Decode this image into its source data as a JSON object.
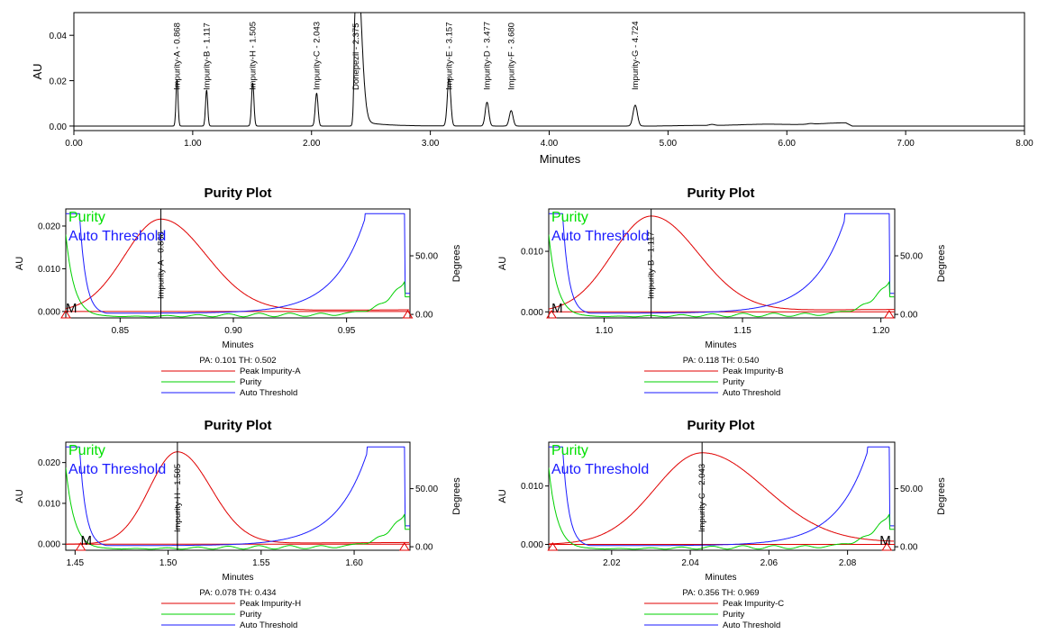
{
  "main_chart": {
    "ylabel": "AU",
    "xlabel": "Minutes",
    "chart_data": {
      "type": "line",
      "xlim": [
        0,
        8
      ],
      "ylim": [
        -0.002,
        0.05
      ],
      "x_ticks": [
        0,
        1,
        2,
        3,
        4,
        5,
        6,
        7,
        8
      ],
      "x_tick_labels": [
        "0.00",
        "1.00",
        "2.00",
        "3.00",
        "4.00",
        "5.00",
        "6.00",
        "7.00",
        "8.00"
      ],
      "y_ticks": [
        0,
        0.02,
        0.04
      ],
      "y_tick_labels": [
        "0.00",
        "0.02",
        "0.04"
      ],
      "peaks": [
        {
          "label": "Impurity-A - 0.868",
          "rt": 0.868,
          "height": 0.0205
        },
        {
          "label": "Impurity-B - 1.117",
          "rt": 1.117,
          "height": 0.0158
        },
        {
          "label": "Impurity-H - 1.505",
          "rt": 1.505,
          "height": 0.019
        },
        {
          "label": "Impurity-C - 2.043",
          "rt": 2.043,
          "height": 0.0145
        },
        {
          "label": "Donepezil - 2.375",
          "rt": 2.375,
          "height": 0.05
        },
        {
          "label": "Impurity-E - 3.157",
          "rt": 3.157,
          "height": 0.021
        },
        {
          "label": "Impurity-D - 3.477",
          "rt": 3.477,
          "height": 0.0105
        },
        {
          "label": "Impurity-F - 3.680",
          "rt": 3.68,
          "height": 0.0068
        },
        {
          "label": "Impurity-G - 4.724",
          "rt": 4.724,
          "height": 0.0092
        }
      ]
    }
  },
  "purity_plots": [
    {
      "title": "Purity Plot",
      "legend_top": [
        "Purity",
        "Auto Threshold"
      ],
      "ylabel_left": "AU",
      "ylabel_right": "Degrees",
      "xlabel": "Minutes",
      "marker_label": "M",
      "peak_label": "Impurity-A - 0.868",
      "pa_th": "PA: 0.101  TH: 0.502",
      "legend_bottom": [
        "Peak Impurity-A",
        "Purity",
        "Auto Threshold"
      ],
      "chart_data": {
        "type": "line",
        "xlim": [
          0.826,
          0.978
        ],
        "x_ticks": [
          0.85,
          0.9,
          0.95
        ],
        "x_tick_labels": [
          "0.85",
          "0.90",
          "0.95"
        ],
        "ylim_left": [
          -0.0015,
          0.024
        ],
        "y_ticks_left": [
          0,
          0.01,
          0.02
        ],
        "y_tick_labels_left": [
          "0.000",
          "0.010",
          "0.020"
        ],
        "ylim_right": [
          -3,
          90
        ],
        "y_ticks_right": [
          0,
          50
        ],
        "y_tick_labels_right": [
          "0.00",
          "50.00"
        ],
        "peak_apex": 0.868,
        "peak_height": 0.0215,
        "peak_sigma_left": 0.016,
        "peak_sigma_right": 0.02,
        "threshold_plateau_start": 0.958,
        "markers": [
          0.826,
          0.977
        ]
      }
    },
    {
      "title": "Purity Plot",
      "legend_top": [
        "Purity",
        "Auto Threshold"
      ],
      "ylabel_left": "AU",
      "ylabel_right": "Degrees",
      "xlabel": "Minutes",
      "marker_label": "M",
      "peak_label": "Impurity-B - 1.117",
      "pa_th": "PA: 0.118  TH: 0.540",
      "legend_bottom": [
        "Peak Impurity-B",
        "Purity",
        "Auto Threshold"
      ],
      "chart_data": {
        "type": "line",
        "xlim": [
          1.08,
          1.205
        ],
        "x_ticks": [
          1.1,
          1.15,
          1.2
        ],
        "x_tick_labels": [
          "1.10",
          "1.15",
          "1.20"
        ],
        "ylim_left": [
          -0.001,
          0.017
        ],
        "y_ticks_left": [
          0,
          0.01
        ],
        "y_tick_labels_left": [
          "0.000",
          "0.010"
        ],
        "ylim_right": [
          -3,
          90
        ],
        "y_ticks_right": [
          0,
          50
        ],
        "y_tick_labels_right": [
          "0.00",
          "50.00"
        ],
        "peak_apex": 1.117,
        "peak_height": 0.0157,
        "peak_sigma_left": 0.014,
        "peak_sigma_right": 0.017,
        "threshold_plateau_start": 1.187,
        "markers": [
          1.081,
          1.203
        ]
      }
    },
    {
      "title": "Purity Plot",
      "legend_top": [
        "Purity",
        "Auto Threshold"
      ],
      "ylabel_left": "AU",
      "ylabel_right": "Degrees",
      "xlabel": "Minutes",
      "marker_label": "M",
      "peak_label": "Impurity-H - 1.505",
      "pa_th": "PA: 0.078  TH: 0.434",
      "legend_bottom": [
        "Peak Impurity-H",
        "Purity",
        "Auto Threshold"
      ],
      "chart_data": {
        "type": "line",
        "xlim": [
          1.445,
          1.63
        ],
        "x_ticks": [
          1.45,
          1.5,
          1.55,
          1.6
        ],
        "x_tick_labels": [
          "1.45",
          "1.50",
          "1.55",
          "1.60"
        ],
        "ylim_left": [
          -0.0015,
          0.025
        ],
        "y_ticks_left": [
          0,
          0.01,
          0.02
        ],
        "y_tick_labels_left": [
          "0.000",
          "0.010",
          "0.020"
        ],
        "ylim_right": [
          -3,
          90
        ],
        "y_ticks_right": [
          0,
          50
        ],
        "y_tick_labels_right": [
          "0.00",
          "50.00"
        ],
        "peak_apex": 1.505,
        "peak_height": 0.0225,
        "peak_sigma_left": 0.015,
        "peak_sigma_right": 0.018,
        "threshold_plateau_start": 1.607,
        "markers": [
          1.453,
          1.627
        ]
      }
    },
    {
      "title": "Purity Plot",
      "legend_top": [
        "Purity",
        "Auto Threshold"
      ],
      "ylabel_left": "AU",
      "ylabel_right": "Degrees",
      "xlabel": "Minutes",
      "marker_label": "M",
      "peak_label": "Impurity-C - 2.043",
      "pa_th": "PA: 0.356  TH: 0.969",
      "legend_bottom": [
        "Peak Impurity-C",
        "Purity",
        "Auto Threshold"
      ],
      "chart_data": {
        "type": "line",
        "xlim": [
          2.004,
          2.092
        ],
        "x_ticks": [
          2.02,
          2.04,
          2.06,
          2.08
        ],
        "x_tick_labels": [
          "2.02",
          "2.04",
          "2.06",
          "2.08"
        ],
        "ylim_left": [
          -0.001,
          0.0175
        ],
        "y_ticks_left": [
          0,
          0.01
        ],
        "y_tick_labels_left": [
          "0.000",
          "0.010"
        ],
        "ylim_right": [
          -3,
          90
        ],
        "y_ticks_right": [
          0,
          50
        ],
        "y_tick_labels_right": [
          "0.00",
          "50.00"
        ],
        "peak_apex": 2.043,
        "peak_height": 0.0155,
        "peak_sigma_left": 0.012,
        "peak_sigma_right": 0.016,
        "threshold_plateau_start": 2.085,
        "markers": [
          2.005,
          2.09
        ]
      }
    }
  ],
  "colors": {
    "peak": "#e00000",
    "purity": "#00d000",
    "threshold": "#1a1aff",
    "axis": "#000000",
    "label_purity": "#00e000",
    "label_threshold": "#1a1aff"
  }
}
